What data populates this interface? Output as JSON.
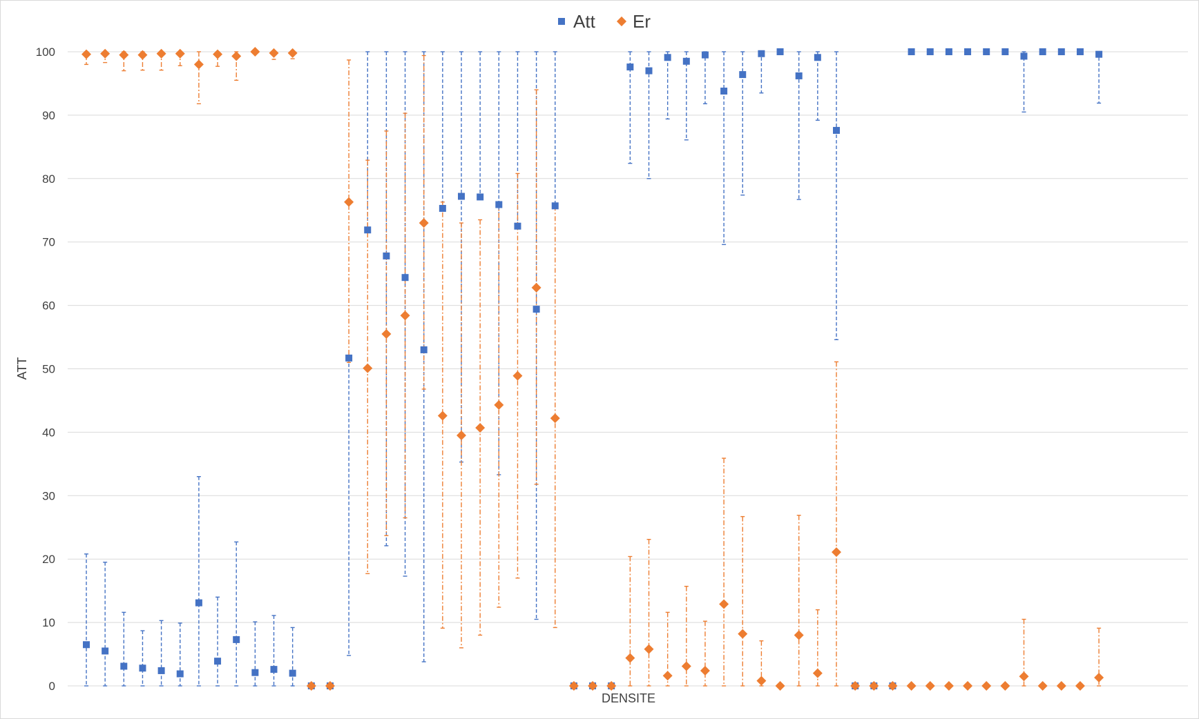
{
  "chart_data": {
    "type": "scatter",
    "xlabel": "DENSITE",
    "ylabel": "ATT",
    "ylim": [
      0,
      100
    ],
    "yticks": [
      "0",
      "10",
      "20",
      "30",
      "40",
      "50",
      "60",
      "70",
      "80",
      "90",
      "100"
    ],
    "grid": true,
    "legend_position": "top",
    "error_bars": "asymmetric",
    "series": [
      {
        "name": "Att",
        "color": "#4472C4",
        "marker": "square",
        "values": [
          6.5,
          5.5,
          3.1,
          2.8,
          2.4,
          1.9,
          13.1,
          3.9,
          7.3,
          2.1,
          2.6,
          2.0,
          0,
          0,
          51.7,
          71.9,
          67.8,
          64.4,
          53.0,
          75.3,
          77.2,
          77.1,
          75.9,
          72.5,
          59.4,
          75.7,
          0,
          0,
          0,
          97.6,
          97.0,
          99.1,
          98.5,
          99.5,
          93.8,
          96.4,
          99.7,
          100,
          96.2,
          99.1,
          87.6,
          0,
          0,
          0,
          100,
          100,
          100,
          100,
          100,
          100,
          99.3,
          100,
          100,
          100,
          99.6
        ],
        "err_low": [
          6.5,
          5.5,
          3.1,
          2.8,
          2.4,
          1.9,
          13.1,
          3.9,
          7.3,
          2.1,
          2.6,
          2.0,
          0,
          0,
          46.9,
          0,
          45.7,
          47.1,
          49.2,
          0,
          41.9,
          0,
          42.6,
          0,
          48.9,
          0,
          0,
          0,
          0,
          15.2,
          17.0,
          9.7,
          12.4,
          7.7,
          24.2,
          19.0,
          6.2,
          0,
          19.5,
          9.9,
          33.0,
          0,
          0,
          0,
          0,
          0,
          0,
          0,
          0,
          0,
          8.8,
          0,
          0,
          0,
          7.7
        ],
        "err_high": [
          14.3,
          14.0,
          8.5,
          5.9,
          7.9,
          8.0,
          19.9,
          10.1,
          15.4,
          8.0,
          8.5,
          7.2,
          0,
          0,
          0,
          28.1,
          32.2,
          35.6,
          47.0,
          24.7,
          22.8,
          22.9,
          24.1,
          27.5,
          40.6,
          24.3,
          0,
          0,
          0,
          2.4,
          3.0,
          0.9,
          1.5,
          0.5,
          6.2,
          3.6,
          0.3,
          0,
          3.8,
          0.9,
          12.4,
          0,
          0,
          0,
          0,
          0,
          0,
          0,
          0,
          0,
          0.7,
          0,
          0,
          0,
          0.4
        ]
      },
      {
        "name": "Er",
        "color": "#ED7D31",
        "marker": "diamond",
        "values": [
          99.6,
          99.7,
          99.5,
          99.5,
          99.7,
          99.7,
          98.0,
          99.6,
          99.3,
          100,
          99.8,
          99.8,
          0,
          0,
          76.3,
          50.1,
          55.5,
          58.4,
          73.0,
          42.6,
          39.5,
          40.7,
          44.3,
          48.9,
          62.8,
          42.2,
          0,
          0,
          0,
          4.4,
          5.8,
          1.6,
          3.1,
          2.4,
          12.9,
          8.2,
          0.8,
          0,
          8.0,
          2.0,
          21.1,
          0,
          0,
          0,
          0,
          0,
          0,
          0,
          0,
          0,
          1.5,
          0,
          0,
          0,
          1.3
        ],
        "err_low": [
          1.6,
          1.4,
          2.5,
          2.4,
          2.6,
          1.9,
          6.2,
          1.9,
          3.8,
          0,
          1.0,
          0.9,
          0,
          0,
          25.3,
          32.4,
          31.8,
          31.9,
          26.2,
          33.5,
          33.5,
          32.7,
          31.9,
          31.9,
          31.0,
          33.0,
          0,
          0,
          0,
          4.4,
          5.8,
          1.6,
          3.1,
          2.4,
          12.9,
          8.2,
          0.8,
          0,
          8.0,
          2.0,
          21.1,
          0,
          0,
          0,
          0,
          0,
          0,
          0,
          0,
          0,
          1.5,
          0,
          0,
          0,
          1.3
        ],
        "err_high": [
          0.4,
          0.3,
          0.5,
          0.5,
          0.3,
          0.3,
          2.0,
          0.4,
          0.7,
          0,
          0.2,
          0.2,
          0,
          0,
          22.4,
          32.8,
          32.0,
          31.9,
          26.4,
          33.7,
          33.5,
          32.8,
          31.9,
          31.9,
          31.2,
          33.5,
          0,
          0,
          0,
          16.0,
          17.3,
          10.0,
          12.6,
          7.8,
          23.0,
          18.5,
          6.3,
          0,
          18.9,
          10.0,
          30.0,
          0,
          0,
          0,
          0,
          0,
          0,
          0,
          0,
          0,
          9.0,
          0,
          0,
          0,
          7.8
        ]
      }
    ]
  }
}
